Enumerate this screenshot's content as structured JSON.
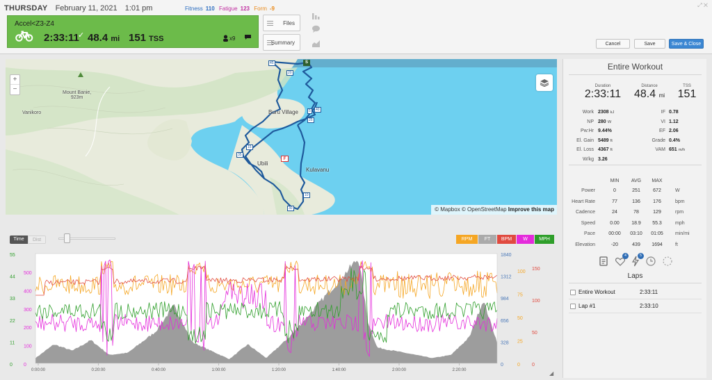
{
  "header": {
    "day": "THURSDAY",
    "date": "February 11, 2021",
    "time": "1:01 pm",
    "fitness_label": "Fitness",
    "fitness_value": "110",
    "fatigue_label": "Fatigue",
    "fatigue_value": "123",
    "form_label": "Form",
    "form_value": "-9",
    "files_label": "Files",
    "summary_label": "Summary",
    "cancel_label": "Cancel",
    "save_label": "Save",
    "save_close_label": "Save & Close"
  },
  "workout": {
    "title": "Accel<Z3-Z4",
    "duration": "2:33:11",
    "distance": "48.4",
    "distance_unit": "mi",
    "tss": "151",
    "tss_unit": "TSS",
    "x_count": "x9",
    "colors": {
      "completed": "#6cbb4a"
    }
  },
  "map": {
    "labels": {
      "mount": "Mount Banie,\n923m",
      "vanikoro": "Vanikoro",
      "village": "Buru Village",
      "ubili": "Ubili",
      "kulavanu": "Kulavanu"
    },
    "markers": {
      "start": "S",
      "finish": "F",
      "km45": "45",
      "km20": "20",
      "km40": "40",
      "km5": "5",
      "km25": "25",
      "km15": "15",
      "km35": "35",
      "km10": "10",
      "km30": "30"
    },
    "attribution_1": "© Mapbox",
    "attribution_2": "© OpenStreetMap",
    "attribution_3": "Improve this map",
    "zoom_in": "+",
    "zoom_out": "−"
  },
  "chart_controls": {
    "time_label": "Time",
    "dist_label": "Dist",
    "legend": [
      {
        "name": "RPM",
        "color": "#f5a623"
      },
      {
        "name": "FT",
        "color": "#aaaaaa"
      },
      {
        "name": "BPM",
        "color": "#e04a3f"
      },
      {
        "name": "W",
        "color": "#e42bdb"
      },
      {
        "name": "MPH",
        "color": "#2e9e2a"
      }
    ]
  },
  "chart_data": {
    "type": "line",
    "x_ticks": [
      "0:00:00",
      "0:20:00",
      "0:40:00",
      "1:00:00",
      "1:20:00",
      "1:40:00",
      "2:00:00",
      "2:20:00"
    ],
    "axes": {
      "mph": {
        "color": "#2e9e2a",
        "ticks": [
          "55",
          "44",
          "33",
          "22",
          "11",
          "0"
        ]
      },
      "watts": {
        "color": "#e42bdb",
        "ticks": [
          "500",
          "400",
          "300",
          "200",
          "100",
          "0"
        ]
      },
      "elevation_ft": {
        "color": "#4a78b8",
        "ticks": [
          "1840",
          "1312",
          "984",
          "656",
          "328",
          "0"
        ]
      },
      "rpm": {
        "color": "#f5a623",
        "ticks": [
          "100",
          "75",
          "50",
          "25",
          "0"
        ]
      },
      "bpm": {
        "color": "#e04a3f",
        "ticks": [
          "150",
          "100",
          "50",
          "0"
        ]
      }
    },
    "series": [
      {
        "name": "FT",
        "color": "#8c8c8c"
      },
      {
        "name": "RPM",
        "color": "#f5a623"
      },
      {
        "name": "BPM",
        "color": "#e04a3f"
      },
      {
        "name": "W",
        "color": "#e42bdb"
      },
      {
        "name": "MPH",
        "color": "#2e9e2a"
      }
    ]
  },
  "panel": {
    "title": "Entire Workout",
    "duration_label": "Duration",
    "duration": "2:33:11",
    "distance_label": "Distance",
    "distance": "48.4",
    "distance_unit": "mi",
    "tss_label": "TSS",
    "tss": "151",
    "stats_left": [
      {
        "label": "Work",
        "value": "2308",
        "unit": "kJ"
      },
      {
        "label": "NP",
        "value": "280",
        "unit": "W"
      },
      {
        "label": "Pw:Hr",
        "value": "9.44%",
        "unit": ""
      },
      {
        "label": "El. Gain",
        "value": "5489",
        "unit": "ft"
      },
      {
        "label": "El. Loss",
        "value": "4367",
        "unit": "ft"
      },
      {
        "label": "W/kg",
        "value": "3.26",
        "unit": ""
      }
    ],
    "stats_right": [
      {
        "label": "IF",
        "value": "0.78",
        "unit": ""
      },
      {
        "label": "VI",
        "value": "1.12",
        "unit": ""
      },
      {
        "label": "EF",
        "value": "2.06",
        "unit": ""
      },
      {
        "label": "Grade",
        "value": "0.4%",
        "unit": ""
      },
      {
        "label": "VAM",
        "value": "651",
        "unit": "m/h"
      }
    ],
    "metrics_headers": [
      "MIN",
      "AVG",
      "MAX"
    ],
    "metrics": [
      {
        "label": "Power",
        "min": "0",
        "avg": "251",
        "max": "672",
        "unit": "W"
      },
      {
        "label": "Heart Rate",
        "min": "77",
        "avg": "136",
        "max": "176",
        "unit": "bpm"
      },
      {
        "label": "Cadence",
        "min": "24",
        "avg": "78",
        "max": "129",
        "unit": "rpm"
      },
      {
        "label": "Speed",
        "min": "0.00",
        "avg": "18.9",
        "max": "55.3",
        "unit": "mph"
      },
      {
        "label": "Pace",
        "min": "00:00",
        "avg": "03:10",
        "max": "01:05",
        "unit": "min/mi"
      },
      {
        "label": "Elevation",
        "min": "-20",
        "avg": "439",
        "max": "1694",
        "unit": "ft"
      }
    ],
    "icon_badges": {
      "heart": "4",
      "bolt": "5"
    },
    "laps_title": "Laps",
    "laps": [
      {
        "name": "Entire Workout",
        "time": "2:33:11"
      },
      {
        "name": "Lap #1",
        "time": "2:33:10"
      }
    ]
  }
}
